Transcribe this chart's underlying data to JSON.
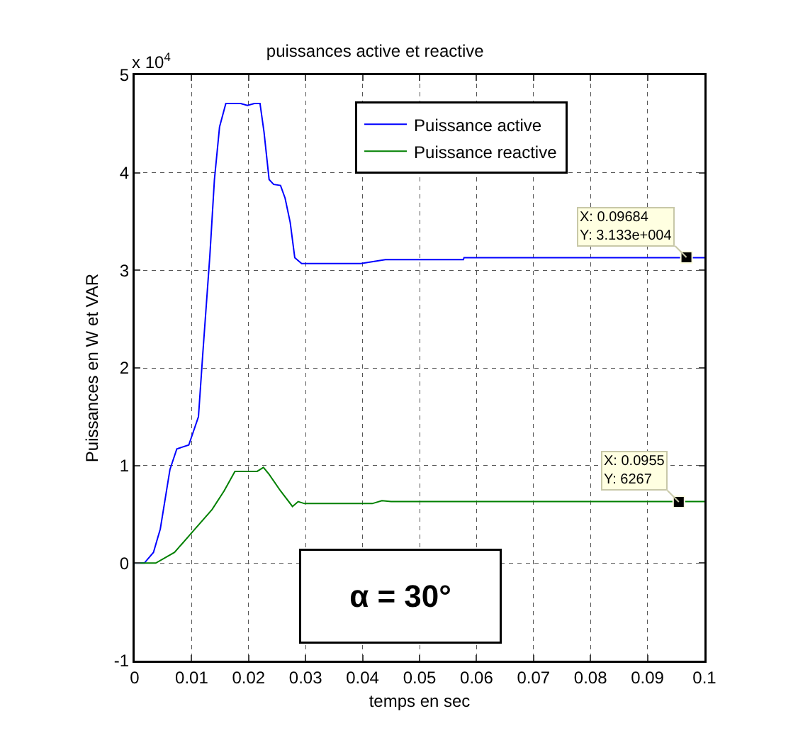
{
  "chart_data": {
    "type": "line",
    "title": "puissances active et reactive",
    "xlabel": "temps en sec",
    "ylabel": "Puissances en W et VAR",
    "xlim": [
      0,
      0.1
    ],
    "xticks": [
      0,
      0.01,
      0.02,
      0.03,
      0.04,
      0.05,
      0.06,
      0.07,
      0.08,
      0.09,
      0.1
    ],
    "ylim": [
      -1,
      5
    ],
    "yticks": [
      -1,
      0,
      1,
      2,
      3,
      4,
      5
    ],
    "grid": true,
    "legend": "top right",
    "marker": "none",
    "line_style": "solid",
    "series": [
      {
        "name": "Puissance active",
        "color": "#0000ff",
        "x": [
          0,
          0.0017,
          0.0033,
          0.0045,
          0.0062,
          0.0074,
          0.0095,
          0.0112,
          0.012,
          0.0132,
          0.014,
          0.0149,
          0.016,
          0.0186,
          0.0198,
          0.021,
          0.022,
          0.0227,
          0.0236,
          0.0244,
          0.0256,
          0.0264,
          0.0273,
          0.0281,
          0.0293,
          0.0397,
          0.044,
          0.0577,
          0.0578,
          0.1
        ],
        "values": [
          0,
          0,
          0.11,
          0.35,
          0.96,
          1.17,
          1.21,
          1.5,
          2.18,
          3.15,
          3.93,
          4.47,
          4.71,
          4.71,
          4.69,
          4.71,
          4.71,
          4.42,
          3.93,
          3.88,
          3.87,
          3.74,
          3.49,
          3.13,
          3.07,
          3.07,
          3.11,
          3.11,
          3.13,
          3.13
        ]
      },
      {
        "name": "Puissance reactive",
        "color": "#008000",
        "x": [
          0,
          0.0037,
          0.007,
          0.0103,
          0.0136,
          0.0157,
          0.0176,
          0.0215,
          0.0226,
          0.0236,
          0.0256,
          0.0277,
          0.0287,
          0.0298,
          0.0417,
          0.0434,
          0.045,
          0.1
        ],
        "values": [
          0,
          0,
          0.11,
          0.33,
          0.55,
          0.74,
          0.94,
          0.94,
          0.98,
          0.91,
          0.74,
          0.58,
          0.63,
          0.61,
          0.61,
          0.64,
          0.63,
          0.63
        ]
      }
    ],
    "annotations": [
      "x 10$^{4}$",
      {
        "text": "X: 0.09684\nY: 3.133e+004",
        "x": 0.09684,
        "y": 3.133
      },
      {
        "text": "X: 0.0955\nY: 6267",
        "x": 0.0955,
        "y": 0.6267
      },
      "α = 30°"
    ]
  }
}
